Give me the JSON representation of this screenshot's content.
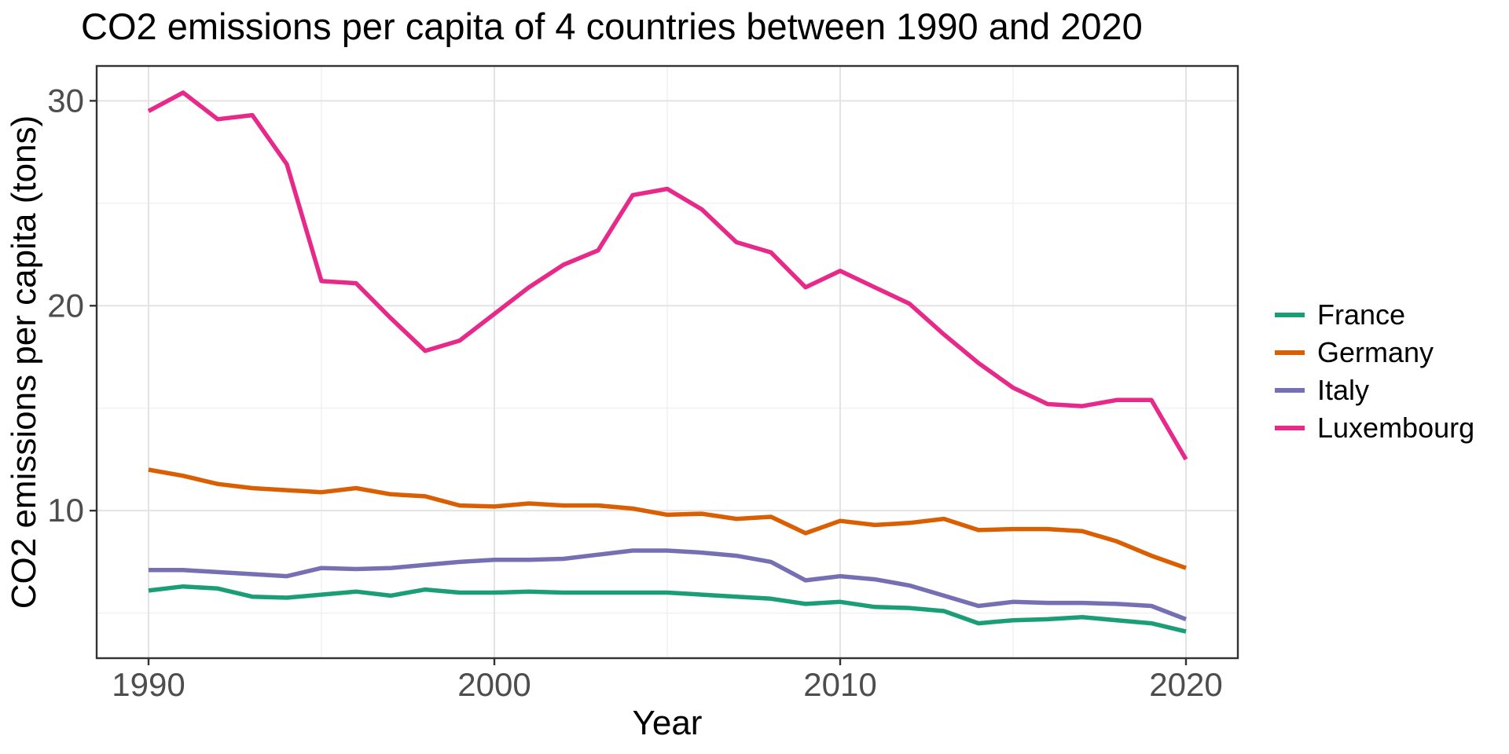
{
  "chart_data": {
    "type": "line",
    "title": "CO2 emissions per capita of 4 countries between 1990 and 2020",
    "xlabel": "Year",
    "ylabel": "CO2 emissions per capita (tons)",
    "x": [
      1990,
      1991,
      1992,
      1993,
      1994,
      1995,
      1996,
      1997,
      1998,
      1999,
      2000,
      2001,
      2002,
      2003,
      2004,
      2005,
      2006,
      2007,
      2008,
      2009,
      2010,
      2011,
      2012,
      2013,
      2014,
      2015,
      2016,
      2017,
      2018,
      2019,
      2020
    ],
    "series": [
      {
        "name": "France",
        "color": "#1B9E77",
        "values": [
          6.1,
          6.3,
          6.2,
          5.8,
          5.75,
          5.9,
          6.05,
          5.85,
          6.15,
          6.0,
          6.0,
          6.05,
          6.0,
          6.0,
          6.0,
          6.0,
          5.9,
          5.8,
          5.7,
          5.45,
          5.55,
          5.3,
          5.25,
          5.1,
          4.5,
          4.65,
          4.7,
          4.8,
          4.65,
          4.5,
          4.1
        ]
      },
      {
        "name": "Germany",
        "color": "#D95F02",
        "values": [
          12.0,
          11.7,
          11.3,
          11.1,
          11.0,
          10.9,
          11.1,
          10.8,
          10.7,
          10.25,
          10.2,
          10.35,
          10.25,
          10.25,
          10.1,
          9.8,
          9.85,
          9.6,
          9.7,
          8.9,
          9.5,
          9.3,
          9.4,
          9.6,
          9.05,
          9.1,
          9.1,
          9.0,
          8.5,
          7.8,
          7.2
        ]
      },
      {
        "name": "Italy",
        "color": "#7570B3",
        "values": [
          7.1,
          7.1,
          7.0,
          6.9,
          6.8,
          7.2,
          7.15,
          7.2,
          7.35,
          7.5,
          7.6,
          7.6,
          7.65,
          7.85,
          8.05,
          8.05,
          7.95,
          7.8,
          7.5,
          6.6,
          6.8,
          6.65,
          6.35,
          5.85,
          5.35,
          5.55,
          5.5,
          5.5,
          5.45,
          5.35,
          4.7
        ]
      },
      {
        "name": "Luxembourg",
        "color": "#E7298A",
        "values": [
          29.5,
          30.4,
          29.1,
          29.3,
          26.9,
          21.2,
          21.1,
          19.4,
          17.8,
          18.3,
          19.6,
          20.9,
          22.0,
          22.7,
          25.4,
          25.7,
          24.7,
          23.1,
          22.6,
          20.9,
          21.7,
          20.9,
          20.1,
          18.6,
          17.2,
          16.0,
          15.2,
          15.1,
          15.4,
          15.4,
          12.5
        ]
      }
    ],
    "xlim": [
      1988.5,
      2021.5
    ],
    "ylim": [
      2.8,
      31.7
    ],
    "x_major_ticks": [
      1990,
      2000,
      2010,
      2020
    ],
    "y_major_ticks": [
      10,
      20,
      30
    ],
    "x_minor_ticks": [
      1995,
      2005,
      2015
    ],
    "y_minor_ticks": [
      5,
      15,
      25
    ],
    "grid": "on",
    "legend_position": "right",
    "line_width": 5.5,
    "colors": {
      "panel_border": "#333333",
      "tick_mark": "#333333",
      "tick_label": "#4D4D4D",
      "major_grid": "#E3E3E3",
      "minor_grid": "#F0F0F0",
      "background": "#FFFFFF",
      "title_text": "#000000"
    }
  }
}
